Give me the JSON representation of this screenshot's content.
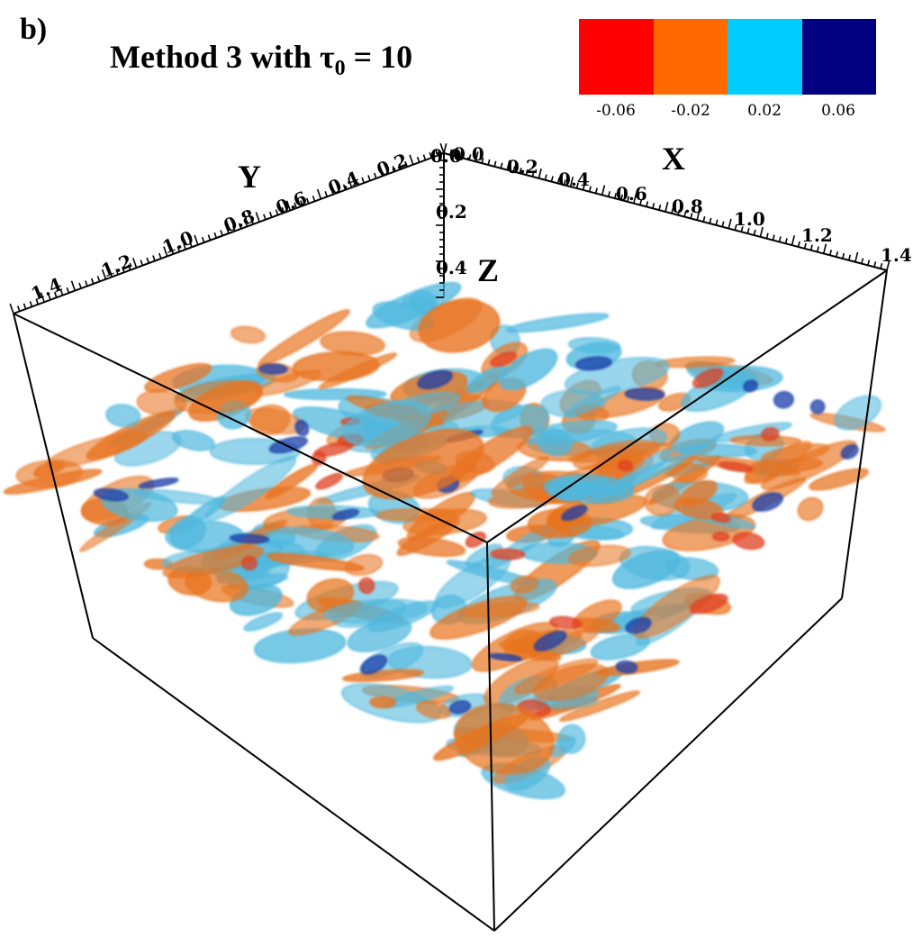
{
  "panel_label": "b)",
  "title": {
    "prefix": "Method 3 with ",
    "symbol": "τ",
    "subscript": "0",
    "suffix": " = 10"
  },
  "legend": {
    "colors": [
      "#ff0000",
      "#ff6a00",
      "#00ccff",
      "#000080"
    ],
    "labels": [
      "-0.06",
      "-0.02",
      "0.02",
      "0.06"
    ]
  },
  "axes": {
    "x": {
      "title": "X",
      "ticks": [
        "0.0",
        "0.2",
        "0.4",
        "0.6",
        "0.8",
        "1.0",
        "1.2",
        "1.4"
      ]
    },
    "y": {
      "title": "Y",
      "ticks": [
        "0.2",
        "0.4",
        "0.6",
        "0.8",
        "1.0",
        "1.2",
        "1.4"
      ]
    },
    "z": {
      "title": "Z",
      "ticks": [
        "0.0",
        "0.2",
        "0.4"
      ]
    }
  },
  "isosurface_colors": {
    "negative_strong": "#e04020",
    "negative": "#e8731f",
    "positive": "#4fb8de",
    "positive_strong": "#1a3fa8"
  }
}
